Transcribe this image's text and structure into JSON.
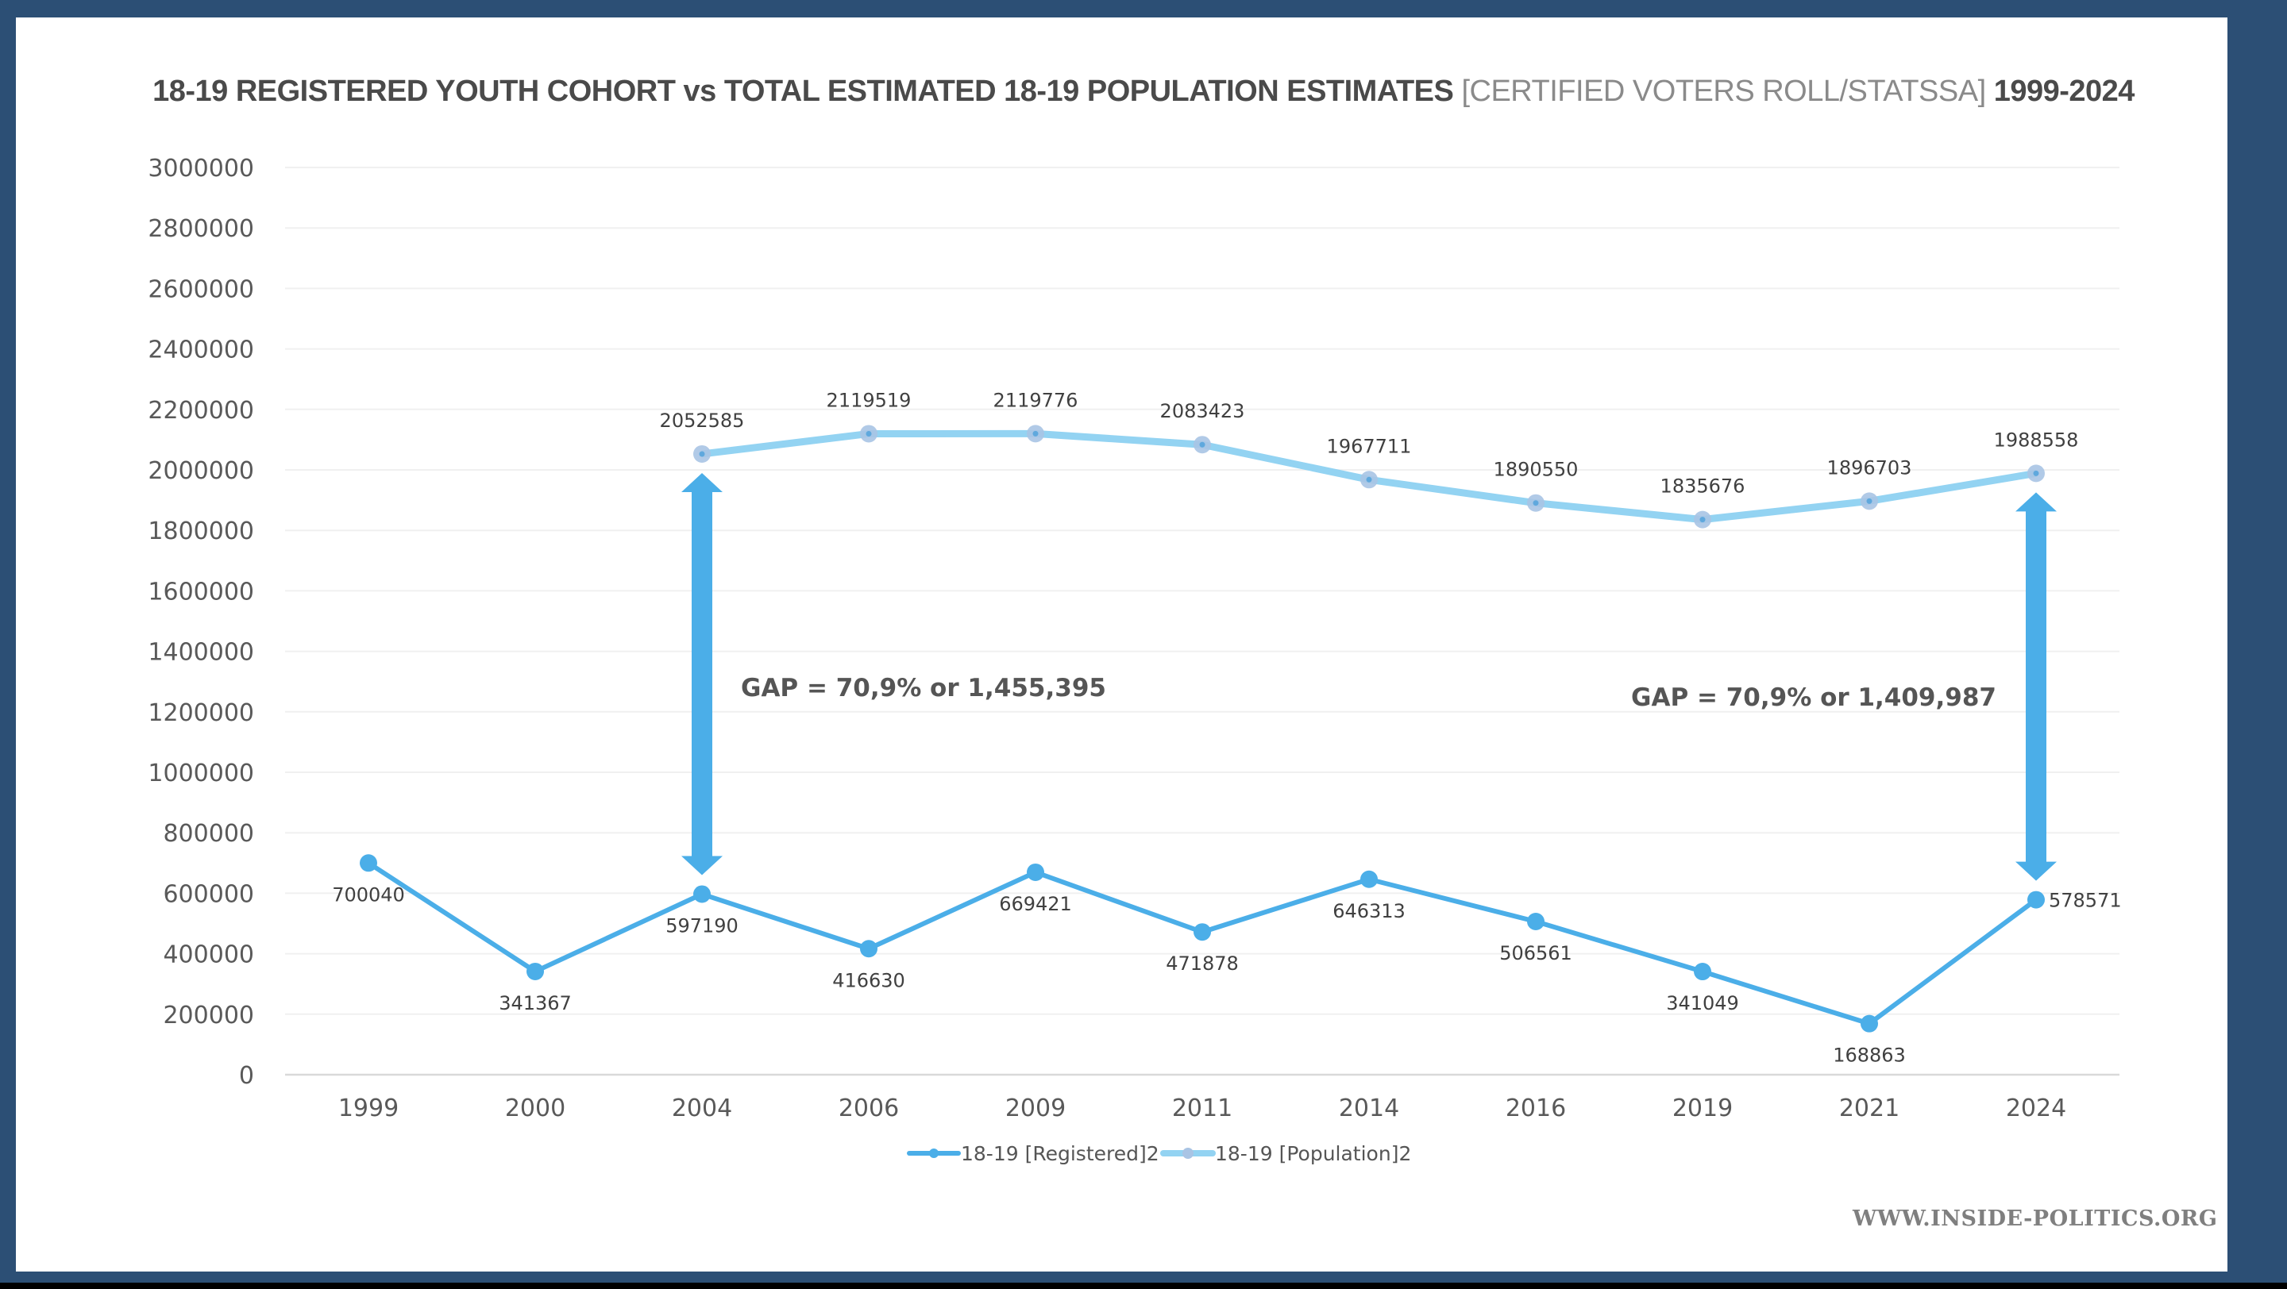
{
  "title": {
    "main": "18-19 REGISTERED YOUTH COHORT vs TOTAL ESTIMATED 18-19 POPULATION ESTIMATES",
    "source": "[CERTIFIED VOTERS ROLL/STATSSA]",
    "range": "1999-2024"
  },
  "watermark": "WWW.INSIDE-POLITICS.ORG",
  "chart_data": {
    "type": "line",
    "title": "18-19 REGISTERED YOUTH COHORT vs TOTAL ESTIMATED 18-19 POPULATION ESTIMATES [CERTIFIED VOTERS ROLL/STATSSA] 1999-2024",
    "xlabel": "",
    "ylabel": "",
    "categories": [
      "1999",
      "2000",
      "2004",
      "2006",
      "2009",
      "2011",
      "2014",
      "2016",
      "2019",
      "2021",
      "2024"
    ],
    "ylim": [
      0,
      3000000
    ],
    "yticks": [
      0,
      200000,
      400000,
      600000,
      800000,
      1000000,
      1200000,
      1400000,
      1600000,
      1800000,
      2000000,
      2200000,
      2400000,
      2600000,
      2800000,
      3000000
    ],
    "grid": true,
    "legend_position": "bottom-center",
    "series": [
      {
        "name": "18-19 [Registered]2",
        "color": "#4BAEE8",
        "values": [
          700040,
          341367,
          597190,
          416630,
          669421,
          471878,
          646313,
          506561,
          341049,
          168863,
          578571
        ]
      },
      {
        "name": "18-19 [Population]2",
        "color": "#93D3F2",
        "marker_color": "#A9C4E4",
        "values": [
          null,
          null,
          2052585,
          2119519,
          2119776,
          2083423,
          1967711,
          1890550,
          1835676,
          1896703,
          1988558
        ]
      }
    ],
    "annotations": [
      {
        "type": "double-arrow",
        "category": "2004",
        "from": 597190,
        "to": 2052585,
        "color": "#4BAEE8",
        "text": "GAP = 70,9% or 1,455,395"
      },
      {
        "type": "double-arrow",
        "category": "2024",
        "from": 578571,
        "to": 1988558,
        "color": "#4BAEE8",
        "text": "GAP = 70,9% or 1,409,987"
      }
    ]
  }
}
